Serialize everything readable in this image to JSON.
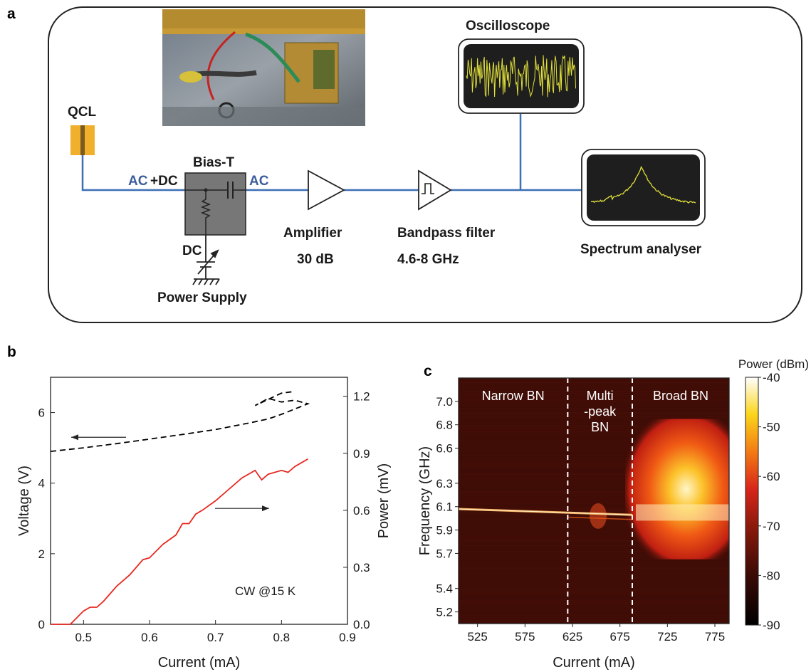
{
  "panel_a": {
    "label": "a",
    "qcl": "QCL",
    "bias_t": "Bias-T",
    "ac_dc_ac": "AC",
    "ac_dc_dc": "+DC",
    "ac_out": "AC",
    "dc": "DC",
    "power_supply": "Power Supply",
    "amplifier": "Amplifier",
    "amplifier_gain": "30 dB",
    "bandpass": "Bandpass filter",
    "bandpass_range": "4.6-8 GHz",
    "oscilloscope": "Oscilloscope",
    "spectrum_analyser": "Spectrum analyser",
    "colors": {
      "wire": "#3c6fb4",
      "qcl": "#f0b02c",
      "biasbox": "#757575",
      "screen": "#1e1e1e",
      "trace": "#e2e13a"
    }
  },
  "chart_data": [
    {
      "panel": "b",
      "type": "line",
      "xlabel": "Current (mA)",
      "ylabel": "Voltage (V)",
      "y2label": "Power (mV)",
      "xlim": [
        0.45,
        0.9
      ],
      "ylim": [
        0,
        7
      ],
      "y2lim": [
        0,
        1.3
      ],
      "xticks": [
        "0.5",
        "0.6",
        "0.7",
        "0.8",
        "0.9"
      ],
      "yticks": [
        "0",
        "2",
        "4",
        "6"
      ],
      "y2ticks": [
        "0.0",
        "0.3",
        "0.6",
        "0.9",
        "1.2"
      ],
      "annotation": "CW @15 K",
      "series": [
        {
          "axis": "left",
          "style": "dashed",
          "color": "#000000",
          "x": [
            0.45,
            0.5,
            0.55,
            0.6,
            0.65,
            0.7,
            0.75,
            0.78,
            0.8,
            0.82,
            0.84,
            0.82,
            0.8,
            0.78,
            0.76,
            0.8,
            0.82
          ],
          "y": [
            4.9,
            5.0,
            5.12,
            5.25,
            5.38,
            5.52,
            5.7,
            5.82,
            5.95,
            6.1,
            6.25,
            6.35,
            6.3,
            6.4,
            6.2,
            6.55,
            6.6
          ]
        },
        {
          "axis": "right",
          "style": "solid",
          "color": "#e8261f",
          "x": [
            0.45,
            0.47,
            0.48,
            0.5,
            0.51,
            0.52,
            0.53,
            0.55,
            0.57,
            0.59,
            0.6,
            0.62,
            0.64,
            0.65,
            0.66,
            0.67,
            0.68,
            0.7,
            0.72,
            0.74,
            0.75,
            0.76,
            0.77,
            0.78,
            0.8,
            0.81,
            0.82,
            0.84
          ],
          "y": [
            0.0,
            0.0,
            0.0,
            0.07,
            0.09,
            0.09,
            0.12,
            0.2,
            0.26,
            0.34,
            0.35,
            0.42,
            0.47,
            0.53,
            0.53,
            0.58,
            0.6,
            0.65,
            0.71,
            0.77,
            0.79,
            0.81,
            0.76,
            0.79,
            0.81,
            0.8,
            0.83,
            0.87
          ]
        }
      ],
      "arrows": [
        {
          "direction": "left",
          "points_to": "voltage"
        },
        {
          "direction": "right",
          "points_to": "power"
        }
      ]
    },
    {
      "panel": "c",
      "type": "heatmap",
      "xlabel": "Current (mA)",
      "ylabel": "Frequency (GHz)",
      "xlim": [
        505,
        790
      ],
      "ylim": [
        5.1,
        7.2
      ],
      "xticks": [
        "525",
        "575",
        "625",
        "675",
        "725",
        "775"
      ],
      "yticks": [
        "5.2",
        "5.4",
        "5.7",
        "5.9",
        "6.1",
        "6.3",
        "6.6",
        "6.8",
        "7.0"
      ],
      "colorbar": {
        "label": "Power (dBm)",
        "min": -90,
        "max": -40,
        "ticks": [
          "-40",
          "-50",
          "-60",
          "-70",
          "-80",
          "-90"
        ]
      },
      "boundaries": [
        620,
        688
      ],
      "regions": [
        {
          "line1": "Narrow BN",
          "line2": "",
          "line3": ""
        },
        {
          "line1": "Multi",
          "line2": "-peak",
          "line3": "BN"
        },
        {
          "line1": "Broad BN",
          "line2": "",
          "line3": ""
        }
      ],
      "peak_line": {
        "freq_start": 6.08,
        "freq_end": 6.03
      }
    }
  ]
}
